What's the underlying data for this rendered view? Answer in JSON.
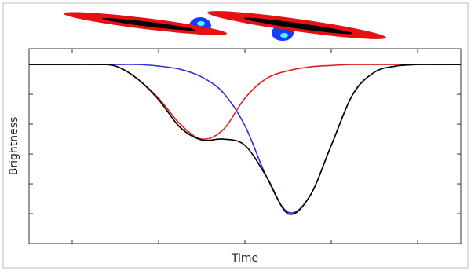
{
  "chart_data": {
    "type": "line",
    "xlabel": "Time",
    "ylabel": "Brightness",
    "x": [
      0,
      0.5,
      1,
      1.5,
      2,
      2.5,
      3,
      3.5,
      4,
      4.5,
      5,
      5.5,
      6,
      6.5,
      7,
      7.5,
      8,
      8.5,
      9,
      9.5,
      10
    ],
    "series": [
      {
        "color": "#3030e0",
        "values": [
          6,
          6,
          6,
          6,
          6,
          6,
          5.95,
          5.84,
          5.58,
          5.05,
          3.95,
          2.24,
          1.05,
          1.58,
          3.29,
          5.0,
          5.74,
          5.95,
          6,
          6,
          6
        ]
      },
      {
        "color": "#e02020",
        "values": [
          6,
          6,
          6,
          6,
          5.95,
          5.53,
          4.87,
          4.0,
          3.5,
          3.82,
          4.87,
          5.53,
          5.79,
          5.92,
          5.97,
          6,
          6,
          6,
          6,
          6,
          6
        ]
      },
      {
        "color": "#000000",
        "values": [
          6,
          6,
          6,
          6,
          5.95,
          5.53,
          4.82,
          3.89,
          3.47,
          3.5,
          3.29,
          2.24,
          1.0,
          1.58,
          3.29,
          5.0,
          5.74,
          5.95,
          6,
          6,
          6
        ]
      }
    ],
    "xlim": [
      0,
      10
    ],
    "ylim": [
      0,
      6.53
    ],
    "xticks": [
      1,
      3,
      5,
      7,
      9
    ],
    "yticks": [
      1,
      2,
      3,
      4,
      5,
      6
    ]
  }
}
